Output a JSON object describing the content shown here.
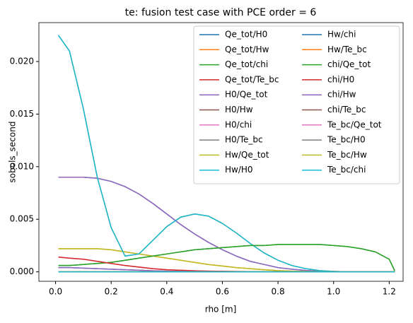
{
  "chart_data": {
    "type": "line",
    "title": "te: fusion test case with PCE order = 6",
    "x_label": "rho [m]",
    "y_label": "sobols_second",
    "x": [
      0.01,
      0.05,
      0.1,
      0.15,
      0.2,
      0.25,
      0.3,
      0.35,
      0.4,
      0.45,
      0.5,
      0.55,
      0.6,
      0.65,
      0.7,
      0.75,
      0.8,
      0.85,
      0.9,
      0.95,
      1.0,
      1.05,
      1.1,
      1.15,
      1.2,
      1.22
    ],
    "xlim": [
      -0.06,
      1.25
    ],
    "xticks": [
      {
        "value": 0,
        "label": "0.0"
      },
      {
        "value": 0.2,
        "label": "0.2"
      },
      {
        "value": 0.4,
        "label": "0.4"
      },
      {
        "value": 0.6,
        "label": "0.6"
      },
      {
        "value": 0.8,
        "label": "0.8"
      },
      {
        "value": 1,
        "label": "1.0"
      },
      {
        "value": 1.2,
        "label": "1.2"
      }
    ],
    "ylim": [
      -0.0009,
      0.0237
    ],
    "yticks": [
      {
        "value": 0,
        "label": "0.000"
      },
      {
        "value": 0.005,
        "label": "0.005"
      },
      {
        "value": 0.01,
        "label": "0.010"
      },
      {
        "value": 0.015,
        "label": "0.015"
      },
      {
        "value": 0.02,
        "label": "0.020"
      }
    ],
    "legend": "upper right",
    "legend_columns": 2,
    "series": [
      {
        "name": "Qe_tot/H0",
        "color": "#1f77b4",
        "values": [
          0.009,
          0.009,
          0.009,
          0.0089,
          0.0086,
          0.0081,
          0.0074,
          0.0065,
          0.0055,
          0.0045,
          0.0036,
          0.0028,
          0.0021,
          0.0015,
          0.001,
          0.0007,
          0.0004,
          0.00025,
          0.00013,
          6e-05,
          3e-05,
          1e-05,
          0,
          0,
          0,
          0
        ]
      },
      {
        "name": "Qe_tot/Hw",
        "color": "#ff7f0e",
        "values": [
          0.0022,
          0.0022,
          0.0022,
          0.0022,
          0.0021,
          0.0019,
          0.0017,
          0.0015,
          0.0013,
          0.0011,
          0.0009,
          0.0007,
          0.00055,
          0.0004,
          0.0003,
          0.0002,
          0.00012,
          7e-05,
          4e-05,
          2e-05,
          1e-05,
          0,
          0,
          0,
          0,
          0
        ]
      },
      {
        "name": "Qe_tot/chi",
        "color": "#2ca02c",
        "values": [
          0.0006,
          0.0006,
          0.0007,
          0.0008,
          0.0009,
          0.0011,
          0.0013,
          0.0015,
          0.0017,
          0.0019,
          0.0021,
          0.0022,
          0.0023,
          0.0024,
          0.0025,
          0.0025,
          0.0026,
          0.0026,
          0.0026,
          0.0026,
          0.0025,
          0.0024,
          0.0022,
          0.0019,
          0.0012,
          0.0001
        ]
      },
      {
        "name": "Qe_tot/Te_bc",
        "color": "#d62728",
        "values": [
          0,
          0,
          0,
          0,
          0,
          0,
          0,
          0,
          0,
          0,
          0,
          0,
          0,
          0,
          0,
          0,
          0,
          0,
          0,
          0,
          0,
          0,
          0,
          0,
          0,
          0
        ]
      },
      {
        "name": "H0/Qe_tot",
        "color": "#9467bd",
        "values": [
          0.009,
          0.009,
          0.009,
          0.0089,
          0.0086,
          0.0081,
          0.0074,
          0.0065,
          0.0055,
          0.0045,
          0.0036,
          0.0028,
          0.0021,
          0.0015,
          0.001,
          0.0007,
          0.0004,
          0.00025,
          0.00013,
          6e-05,
          3e-05,
          1e-05,
          0,
          0,
          0,
          0
        ]
      },
      {
        "name": "H0/Hw",
        "color": "#8c564b",
        "values": [
          0.0225,
          0.021,
          0.0155,
          0.009,
          0.0042,
          0.0015,
          0.0017,
          0.003,
          0.0043,
          0.0052,
          0.0055,
          0.0053,
          0.0046,
          0.0037,
          0.0027,
          0.0018,
          0.0011,
          0.0006,
          0.0003,
          0.00012,
          4e-05,
          1e-05,
          0,
          0,
          0,
          0
        ]
      },
      {
        "name": "H0/chi",
        "color": "#e377c2",
        "values": [
          0.0014,
          0.0013,
          0.0012,
          0.001,
          0.0008,
          0.0006,
          0.00045,
          0.0003,
          0.0002,
          0.00015,
          0.0001,
          7e-05,
          5e-05,
          3e-05,
          2e-05,
          1e-05,
          0,
          0,
          0,
          0,
          0,
          0,
          0,
          0,
          0,
          0
        ]
      },
      {
        "name": "H0/Te_bc",
        "color": "#7f7f7f",
        "values": [
          0,
          0,
          0,
          0,
          0,
          0,
          0,
          0,
          0,
          0,
          0,
          0,
          0,
          0,
          0,
          0,
          0,
          0,
          0,
          0,
          0,
          0,
          0,
          0,
          0,
          0
        ]
      },
      {
        "name": "Hw/Qe_tot",
        "color": "#bcbd22",
        "values": [
          0.0022,
          0.0022,
          0.0022,
          0.0022,
          0.0021,
          0.0019,
          0.0017,
          0.0015,
          0.0013,
          0.0011,
          0.0009,
          0.0007,
          0.00055,
          0.0004,
          0.0003,
          0.0002,
          0.00012,
          7e-05,
          4e-05,
          2e-05,
          1e-05,
          0,
          0,
          0,
          0,
          0
        ]
      },
      {
        "name": "Hw/H0",
        "color": "#17becf",
        "values": [
          0.0225,
          0.021,
          0.0155,
          0.009,
          0.0042,
          0.0015,
          0.0017,
          0.003,
          0.0043,
          0.0052,
          0.0055,
          0.0053,
          0.0046,
          0.0037,
          0.0027,
          0.0018,
          0.0011,
          0.0006,
          0.0003,
          0.00012,
          4e-05,
          1e-05,
          0,
          0,
          0,
          0
        ]
      },
      {
        "name": "Hw/chi",
        "color": "#1f77b4",
        "values": [
          0.0004,
          0.0004,
          0.00035,
          0.0003,
          0.00025,
          0.0002,
          0.00015,
          0.0001,
          7e-05,
          5e-05,
          3e-05,
          2e-05,
          1e-05,
          0,
          0,
          0,
          0,
          0,
          0,
          0,
          0,
          0,
          0,
          0,
          0,
          0
        ]
      },
      {
        "name": "Hw/Te_bc",
        "color": "#ff7f0e",
        "values": [
          0,
          0,
          0,
          0,
          0,
          0,
          0,
          0,
          0,
          0,
          0,
          0,
          0,
          0,
          0,
          0,
          0,
          0,
          0,
          0,
          0,
          0,
          0,
          0,
          0,
          0
        ]
      },
      {
        "name": "chi/Qe_tot",
        "color": "#2ca02c",
        "values": [
          0.0006,
          0.0006,
          0.0007,
          0.0008,
          0.0009,
          0.0011,
          0.0013,
          0.0015,
          0.0017,
          0.0019,
          0.0021,
          0.0022,
          0.0023,
          0.0024,
          0.0025,
          0.0025,
          0.0026,
          0.0026,
          0.0026,
          0.0026,
          0.0025,
          0.0024,
          0.0022,
          0.0019,
          0.0012,
          0.0001
        ]
      },
      {
        "name": "chi/H0",
        "color": "#d62728",
        "values": [
          0.0014,
          0.0013,
          0.0012,
          0.001,
          0.0008,
          0.0006,
          0.00045,
          0.0003,
          0.0002,
          0.00015,
          0.0001,
          7e-05,
          5e-05,
          3e-05,
          2e-05,
          1e-05,
          0,
          0,
          0,
          0,
          0,
          0,
          0,
          0,
          0,
          0
        ]
      },
      {
        "name": "chi/Hw",
        "color": "#9467bd",
        "values": [
          0.0004,
          0.0004,
          0.00035,
          0.0003,
          0.00025,
          0.0002,
          0.00015,
          0.0001,
          7e-05,
          5e-05,
          3e-05,
          2e-05,
          1e-05,
          0,
          0,
          0,
          0,
          0,
          0,
          0,
          0,
          0,
          0,
          0,
          0,
          0
        ]
      },
      {
        "name": "chi/Te_bc",
        "color": "#8c564b",
        "values": [
          0,
          0,
          0,
          0,
          0,
          0,
          0,
          0,
          0,
          0,
          0,
          0,
          0,
          0,
          0,
          0,
          0,
          0,
          0,
          0,
          0,
          0,
          0,
          0,
          0,
          0
        ]
      },
      {
        "name": "Te_bc/Qe_tot",
        "color": "#e377c2",
        "values": [
          0,
          0,
          0,
          0,
          0,
          0,
          0,
          0,
          0,
          0,
          0,
          0,
          0,
          0,
          0,
          0,
          0,
          0,
          0,
          0,
          0,
          0,
          0,
          0,
          0,
          0
        ]
      },
      {
        "name": "Te_bc/H0",
        "color": "#7f7f7f",
        "values": [
          0,
          0,
          0,
          0,
          0,
          0,
          0,
          0,
          0,
          0,
          0,
          0,
          0,
          0,
          0,
          0,
          0,
          0,
          0,
          0,
          0,
          0,
          0,
          0,
          0,
          0
        ]
      },
      {
        "name": "Te_bc/Hw",
        "color": "#bcbd22",
        "values": [
          0,
          0,
          0,
          0,
          0,
          0,
          0,
          0,
          0,
          0,
          0,
          0,
          0,
          0,
          0,
          0,
          0,
          0,
          0,
          0,
          0,
          0,
          0,
          0,
          0,
          0
        ]
      },
      {
        "name": "Te_bc/chi",
        "color": "#17becf",
        "values": [
          0,
          0,
          0,
          0,
          0,
          0,
          0,
          0,
          0,
          0,
          0,
          0,
          0,
          0,
          0,
          0,
          0,
          0,
          0,
          0,
          0,
          0,
          0,
          0,
          0,
          0
        ]
      }
    ]
  }
}
